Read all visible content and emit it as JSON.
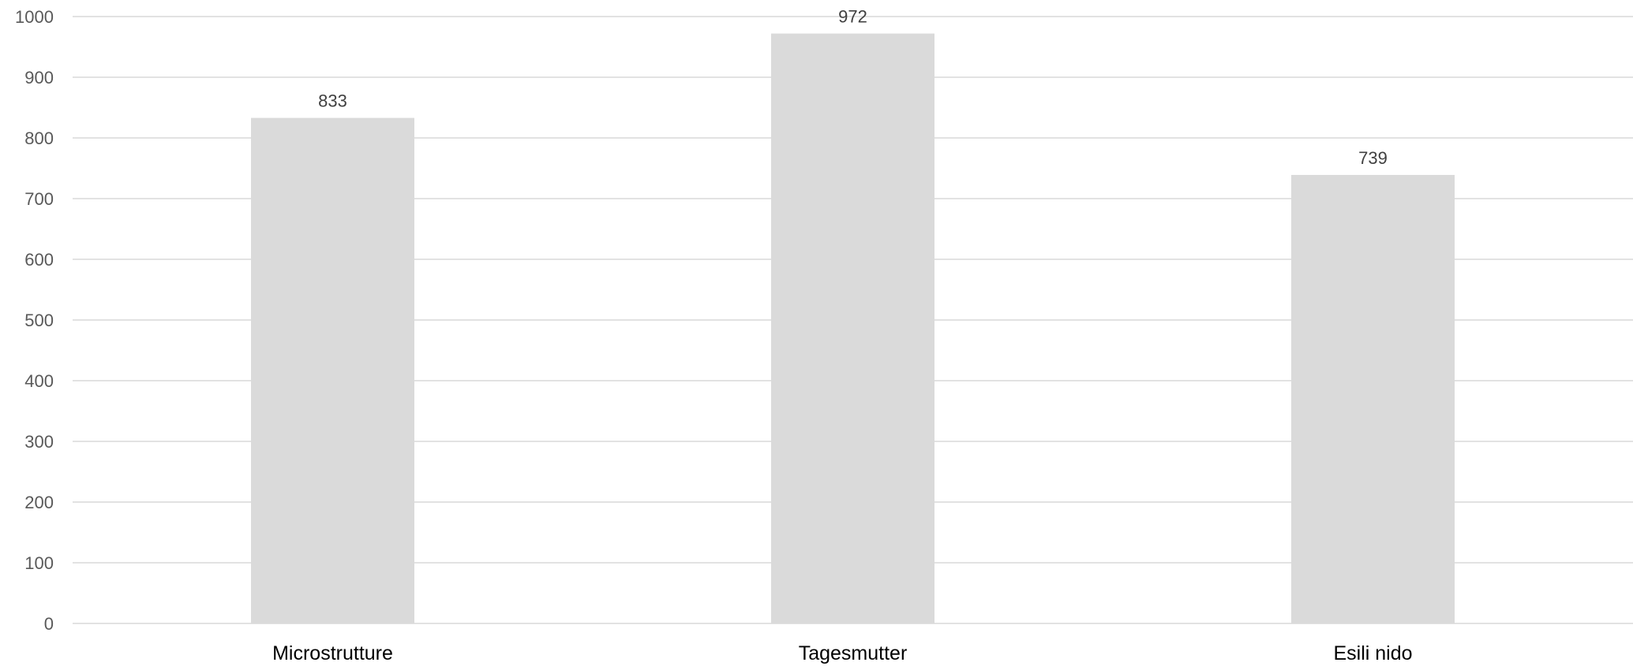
{
  "chart_data": {
    "type": "bar",
    "title": "",
    "xlabel": "",
    "ylabel": "",
    "categories": [
      "Microstrutture",
      "Tagesmutter",
      "Esili nido"
    ],
    "values": [
      833,
      972,
      739
    ],
    "data_labels": [
      "833",
      "972",
      "739"
    ],
    "ylim": [
      0,
      1000
    ],
    "y_ticks": [
      0,
      100,
      200,
      300,
      400,
      500,
      600,
      700,
      800,
      900,
      1000
    ],
    "y_tick_labels": [
      "0",
      "100",
      "200",
      "300",
      "400",
      "500",
      "600",
      "700",
      "800",
      "900",
      "1000"
    ],
    "grid": true,
    "legend": "none",
    "colors": {
      "bar": "#dadada",
      "gridline": "#d9d9d9",
      "tick_label": "#595959",
      "category_label": "#000000",
      "data_label": "#404040"
    }
  }
}
